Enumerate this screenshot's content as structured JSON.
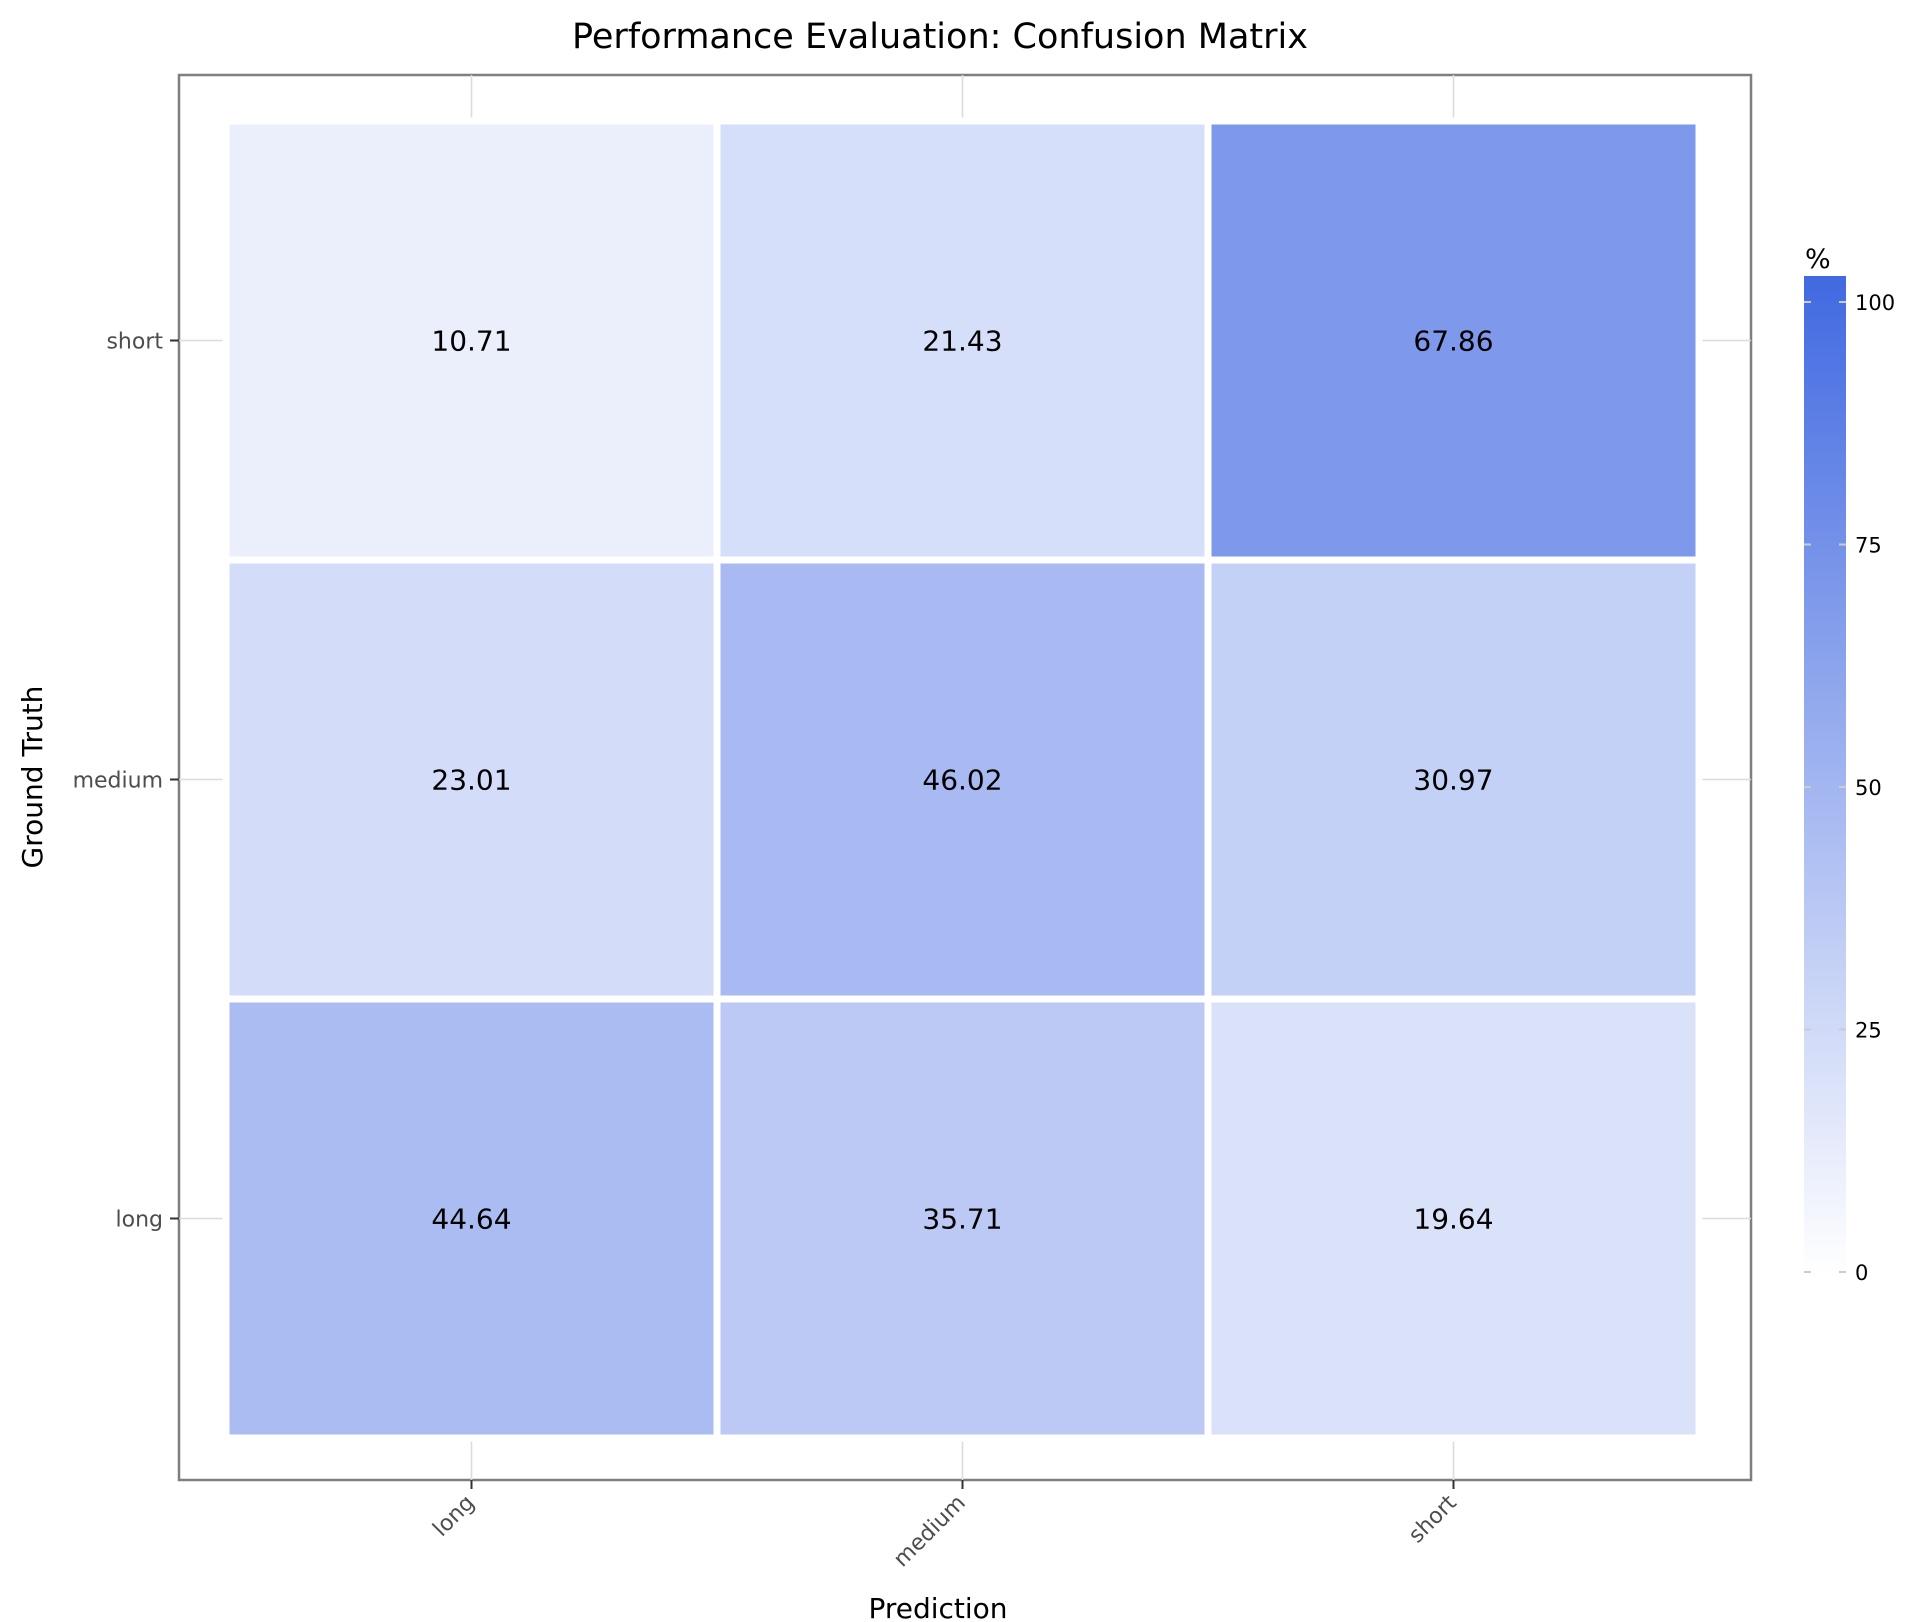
{
  "chart_data": {
    "type": "heatmap",
    "title": "Performance Evaluation: Confusion Matrix",
    "xlabel": "Prediction",
    "ylabel": "Ground Truth",
    "x_categories": [
      "long",
      "medium",
      "short"
    ],
    "y_categories": [
      "long",
      "medium",
      "short"
    ],
    "values": [
      {
        "truth": "short",
        "prediction": "long",
        "value": 10.71
      },
      {
        "truth": "short",
        "prediction": "medium",
        "value": 21.43
      },
      {
        "truth": "short",
        "prediction": "short",
        "value": 67.86
      },
      {
        "truth": "medium",
        "prediction": "long",
        "value": 23.01
      },
      {
        "truth": "medium",
        "prediction": "medium",
        "value": 46.02
      },
      {
        "truth": "medium",
        "prediction": "short",
        "value": 30.97
      },
      {
        "truth": "long",
        "prediction": "long",
        "value": 44.64
      },
      {
        "truth": "long",
        "prediction": "medium",
        "value": 35.71
      },
      {
        "truth": "long",
        "prediction": "short",
        "value": 19.64
      }
    ],
    "colorbar": {
      "title": "%",
      "range": [
        0,
        100
      ],
      "ticks": [
        0,
        25,
        50,
        75,
        100
      ],
      "low_color": "#ffffff",
      "high_color": "#4169e1"
    },
    "grid": true,
    "legend_position": "right"
  }
}
